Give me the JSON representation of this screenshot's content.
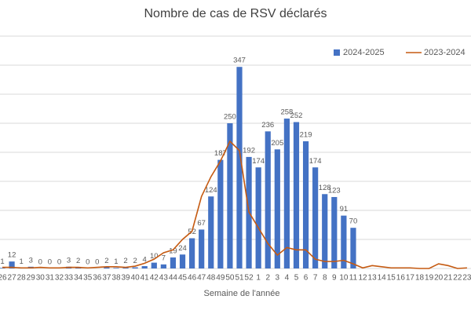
{
  "chart_data": {
    "type": "bar_line",
    "title": "Nombre de cas de RSV déclarés",
    "x_label": "Semaine de l'année",
    "categories": [
      "26",
      "27",
      "28",
      "29",
      "30",
      "31",
      "32",
      "33",
      "34",
      "35",
      "36",
      "37",
      "38",
      "39",
      "40",
      "41",
      "42",
      "43",
      "44",
      "45",
      "46",
      "47",
      "48",
      "49",
      "50",
      "51",
      "52",
      "1",
      "2",
      "3",
      "4",
      "5",
      "6",
      "7",
      "8",
      "9",
      "10",
      "11",
      "12",
      "13",
      "14",
      "15",
      "16",
      "17",
      "18",
      "19",
      "20",
      "21",
      "22",
      "23"
    ],
    "series": [
      {
        "name": "2024-2025",
        "type": "bar",
        "color": "#4472c4",
        "values": [
          1,
          12,
          1,
          3,
          0,
          0,
          0,
          3,
          2,
          0,
          0,
          2,
          1,
          2,
          2,
          4,
          10,
          7,
          19,
          24,
          52,
          67,
          124,
          187,
          250,
          347,
          192,
          174,
          236,
          205,
          258,
          252,
          219,
          174,
          128,
          123,
          91,
          70,
          null,
          null,
          null,
          null,
          null,
          null,
          null,
          null,
          null,
          null,
          null,
          null
        ]
      },
      {
        "name": "2023-2024",
        "type": "line",
        "color": "#c55a11",
        "values": [
          2,
          2,
          1,
          1,
          2,
          1,
          1,
          2,
          2,
          1,
          2,
          3,
          3,
          2,
          4,
          9,
          16,
          27,
          32,
          50,
          64,
          124,
          158,
          185,
          219,
          203,
          97,
          70,
          43,
          23,
          36,
          32,
          32,
          16,
          12,
          12,
          14,
          8,
          1,
          5,
          3,
          1,
          1,
          1,
          0,
          0,
          8,
          5,
          0,
          1
        ]
      }
    ],
    "ylim": [
      0,
      400
    ],
    "yticks": [
      0,
      50,
      100,
      150,
      200,
      250,
      300,
      350,
      400
    ],
    "grid": true,
    "legend": "top-right"
  }
}
